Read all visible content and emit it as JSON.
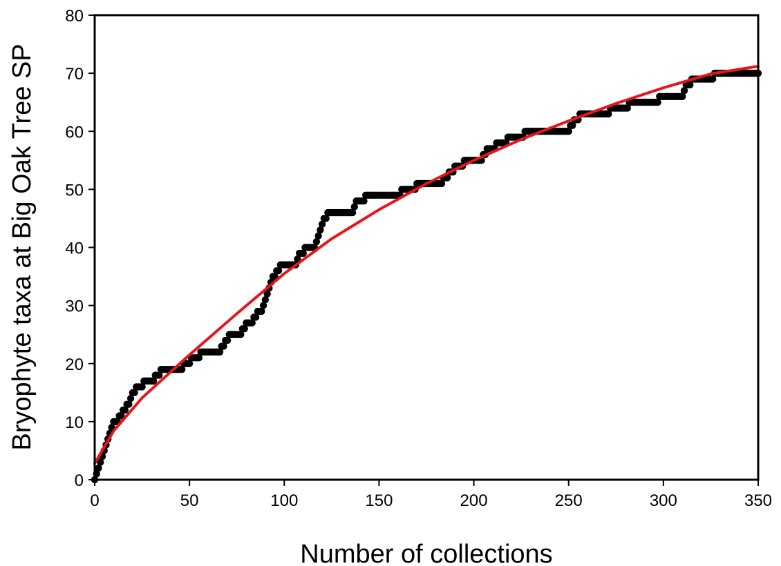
{
  "chart_data": {
    "type": "scatter",
    "title": "",
    "xlabel": "Number of collections",
    "ylabel": "Bryophyte taxa at Big Oak Tree SP",
    "xlim": [
      0,
      350
    ],
    "ylim": [
      0,
      80
    ],
    "xticks": [
      0,
      50,
      100,
      150,
      200,
      250,
      300,
      350
    ],
    "yticks": [
      0,
      10,
      20,
      30,
      40,
      50,
      60,
      70,
      80
    ],
    "grid": false,
    "legend": "none",
    "colors": {
      "observed": "#000000",
      "fit": "#e8141b"
    },
    "series": [
      {
        "kind": "observed",
        "style": "markers",
        "steps": [
          [
            0,
            0
          ],
          [
            1,
            1
          ],
          [
            2,
            2
          ],
          [
            3,
            3
          ],
          [
            4,
            4
          ],
          [
            5,
            5
          ],
          [
            6,
            6
          ],
          [
            7,
            7
          ],
          [
            8,
            8
          ],
          [
            9,
            9
          ],
          [
            10,
            10
          ],
          [
            13,
            11
          ],
          [
            15,
            12
          ],
          [
            17,
            13
          ],
          [
            19,
            14
          ],
          [
            20,
            15
          ],
          [
            22,
            16
          ],
          [
            26,
            17
          ],
          [
            32,
            18
          ],
          [
            35,
            19
          ],
          [
            47,
            20
          ],
          [
            51,
            21
          ],
          [
            56,
            22
          ],
          [
            67,
            23
          ],
          [
            69,
            24
          ],
          [
            71,
            25
          ],
          [
            78,
            26
          ],
          [
            80,
            27
          ],
          [
            84,
            28
          ],
          [
            86,
            29
          ],
          [
            89,
            30
          ],
          [
            90,
            31
          ],
          [
            91,
            32
          ],
          [
            92,
            33
          ],
          [
            93,
            34
          ],
          [
            94,
            35
          ],
          [
            96,
            36
          ],
          [
            98,
            37
          ],
          [
            107,
            38
          ],
          [
            108,
            39
          ],
          [
            111,
            40
          ],
          [
            117,
            41
          ],
          [
            118,
            42
          ],
          [
            119,
            43
          ],
          [
            120,
            44
          ],
          [
            121,
            45
          ],
          [
            123,
            46
          ],
          [
            137,
            47
          ],
          [
            138,
            48
          ],
          [
            143,
            49
          ],
          [
            162,
            50
          ],
          [
            170,
            51
          ],
          [
            184,
            52
          ],
          [
            187,
            53
          ],
          [
            190,
            54
          ],
          [
            195,
            55
          ],
          [
            205,
            56
          ],
          [
            207,
            57
          ],
          [
            212,
            58
          ],
          [
            218,
            59
          ],
          [
            227,
            60
          ],
          [
            251,
            61
          ],
          [
            253,
            62
          ],
          [
            256,
            63
          ],
          [
            272,
            64
          ],
          [
            282,
            65
          ],
          [
            298,
            66
          ],
          [
            311,
            67
          ],
          [
            312,
            68
          ],
          [
            315,
            69
          ],
          [
            327,
            70
          ],
          [
            350,
            70
          ]
        ]
      },
      {
        "kind": "fit",
        "style": "line",
        "x": [
          0,
          10,
          25,
          50,
          75,
          100,
          125,
          150,
          175,
          200,
          225,
          250,
          275,
          300,
          325,
          350
        ],
        "y": [
          2.8,
          8.4,
          14.1,
          21.5,
          28.6,
          35.5,
          41.5,
          46.5,
          51.0,
          55.0,
          58.6,
          61.8,
          64.8,
          67.5,
          69.9,
          71.2
        ]
      }
    ]
  }
}
